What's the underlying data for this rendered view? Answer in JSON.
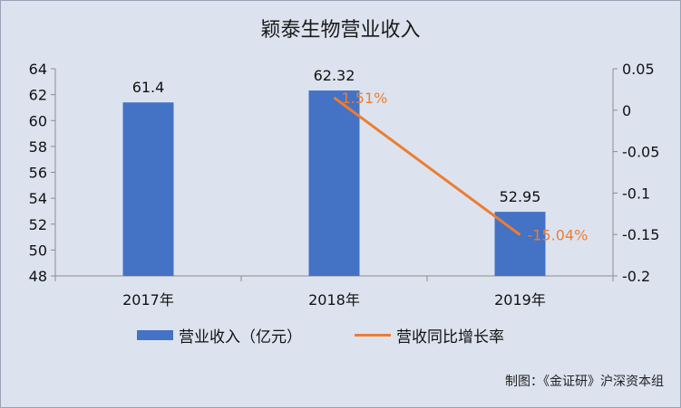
{
  "chart_data": {
    "type": "bar",
    "title": "颖泰生物营业收入",
    "categories": [
      "2017年",
      "2018年",
      "2019年"
    ],
    "series": [
      {
        "name": "营业收入（亿元）",
        "type": "bar",
        "axis": "left",
        "values": [
          61.4,
          62.32,
          52.95
        ],
        "data_labels": [
          "61.4",
          "62.32",
          "52.95"
        ],
        "color": "#4472c4"
      },
      {
        "name": "营收同比增长率",
        "type": "line",
        "axis": "right",
        "values": [
          null,
          0.0151,
          -0.1504
        ],
        "data_labels": [
          "",
          "1.51%",
          "-15.04%"
        ],
        "color": "#ed7d31"
      }
    ],
    "y_left": {
      "ylim": [
        48,
        64
      ],
      "ticks": [
        "48",
        "50",
        "52",
        "54",
        "56",
        "58",
        "60",
        "62",
        "64"
      ]
    },
    "y_right": {
      "ylim": [
        -0.2,
        0.05
      ],
      "ticks": [
        "0.05",
        "0",
        "-0.05",
        "-0.1",
        "-0.15",
        "-0.2"
      ]
    },
    "grid": false,
    "legend_position": "bottom"
  },
  "footnote": "制图：《金证研》沪深资本组"
}
